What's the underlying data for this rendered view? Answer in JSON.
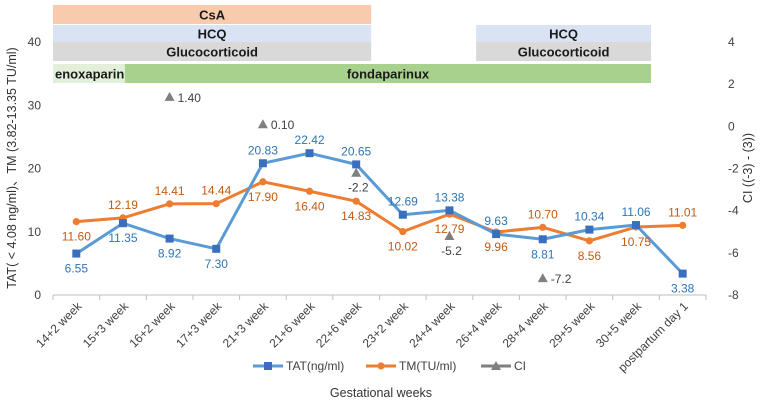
{
  "chart_data": {
    "type": "line",
    "xlabel": "Gestational weeks",
    "ylabel_left": "TAT( < 4.08 ng/ml)、TM (3.82-13.35 TU/ml)",
    "ylabel_right": "CI ((-3) - (3))",
    "y_left_lim": [
      0,
      40
    ],
    "y_left_ticks": [
      "0",
      "10",
      "20",
      "30",
      "40"
    ],
    "y_right_lim": [
      -8,
      4
    ],
    "y_right_ticks": [
      "-8",
      "-6",
      "-4",
      "-2",
      "0",
      "2",
      "4"
    ],
    "categories": [
      "14+2 week",
      "15+3 week",
      "16+2 week",
      "17+3 week",
      "21+3 week",
      "21+6 week",
      "22+6 week",
      "23+2 week",
      "24+4 week",
      "26+4 week",
      "28+4 week",
      "29+5 week",
      "30+5 week",
      "postpartum day 1"
    ],
    "series": [
      {
        "name": "TAT(ng/ml)",
        "axis": "left",
        "color": "#5b9bd5",
        "label_color": "#2e75b6",
        "marker": "square",
        "values": [
          6.55,
          11.35,
          8.92,
          7.3,
          20.83,
          22.42,
          20.65,
          12.69,
          13.38,
          9.63,
          8.81,
          10.34,
          11.06,
          3.38
        ],
        "labels": [
          "6.55",
          "11.35",
          "8.92",
          "7.30",
          "20.83",
          "22.42",
          "20.65",
          "12.69",
          "13.38",
          "9.63",
          "8.81",
          "10.34",
          "11.06",
          "3.38"
        ]
      },
      {
        "name": "TM(TU/ml)",
        "axis": "left",
        "color": "#ed7d31",
        "label_color": "#c55a11",
        "marker": "circle",
        "values": [
          11.6,
          12.19,
          14.41,
          14.44,
          17.9,
          16.4,
          14.83,
          10.02,
          12.79,
          9.96,
          10.7,
          8.56,
          10.75,
          11.01
        ],
        "labels": [
          "11.60",
          "12.19",
          "14.41",
          "14.44",
          "17.90",
          "16.40",
          "14.83",
          "10.02",
          "12.79",
          "9.96",
          "10.70",
          "8.56",
          "10.75",
          "11.01"
        ]
      },
      {
        "name": "CI",
        "axis": "right",
        "color": "#7f7f7f",
        "label_color": "#404040",
        "marker": "triangle",
        "points": [
          {
            "index": 2,
            "value": 1.4,
            "label": "1.40"
          },
          {
            "index": 4,
            "value": 0.1,
            "label": "0.10"
          },
          {
            "index": 6,
            "value": -2.2,
            "label": "-2.2"
          },
          {
            "index": 8,
            "value": -5.2,
            "label": "-5.2"
          },
          {
            "index": 10,
            "value": -7.2,
            "label": "-7.2"
          }
        ]
      }
    ],
    "treatment_bands": [
      {
        "label": "CsA",
        "color": "#f8cbad",
        "from": "14+2 week",
        "to": "22+6 week",
        "row": 0
      },
      {
        "label": "HCQ",
        "color": "#dae3f3",
        "from": "14+2 week",
        "to": "22+6 week",
        "row": 1
      },
      {
        "label": "HCQ",
        "color": "#dae3f3",
        "from": "26+4 week",
        "to": "30+5 week",
        "row": 1
      },
      {
        "label": "Glucocorticoid",
        "color": "#d9d9d9",
        "from": "14+2 week",
        "to": "22+6 week",
        "row": 2
      },
      {
        "label": "Glucocorticoid",
        "color": "#d9d9d9",
        "from": "26+4 week",
        "to": "30+5 week",
        "row": 2
      },
      {
        "label": "enoxaparin",
        "color": "#e2f0d9",
        "from": "14+2 week",
        "to": "15+3 week",
        "row": 3
      },
      {
        "label": "fondaparinux",
        "color": "#a9d18e",
        "from": "15+3 week",
        "to": "30+5 week",
        "row": 3
      }
    ],
    "legend_position": "bottom"
  }
}
